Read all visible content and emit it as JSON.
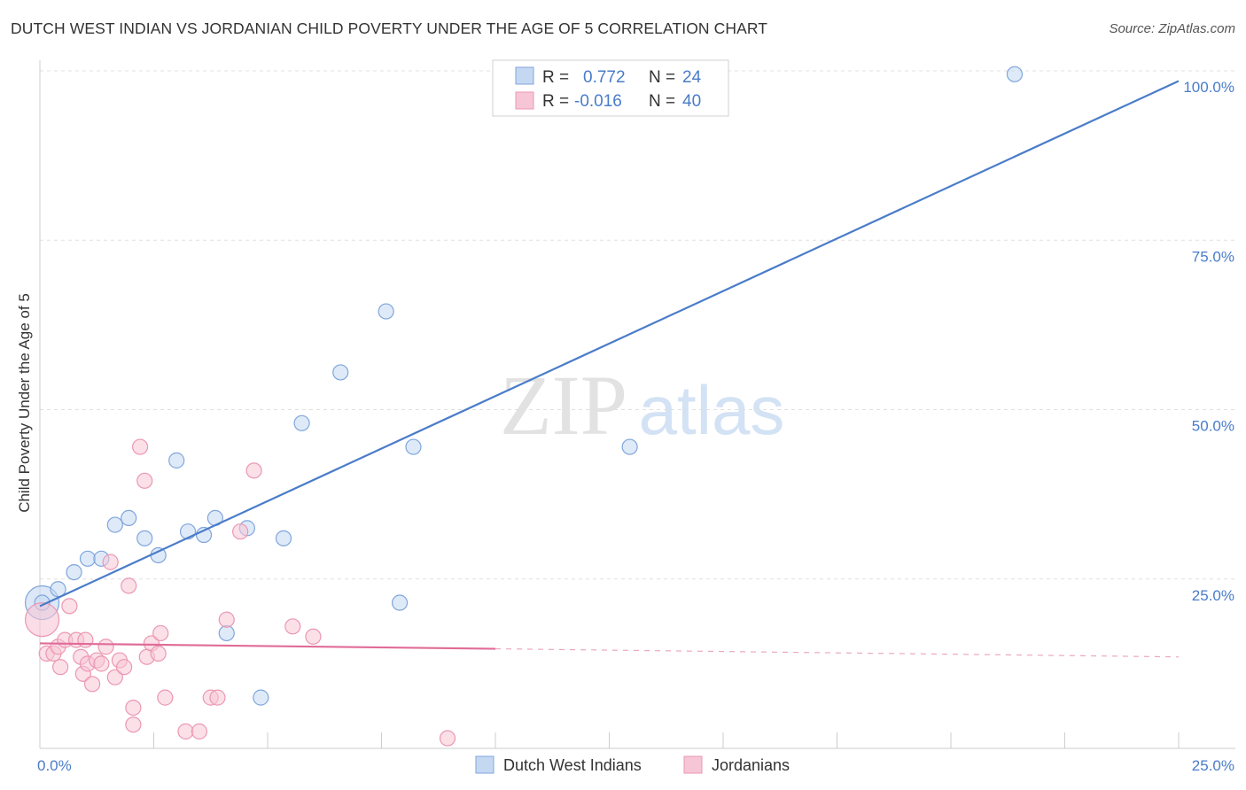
{
  "chart_data": {
    "type": "scatter",
    "title": "DUTCH WEST INDIAN VS JORDANIAN CHILD POVERTY UNDER THE AGE OF 5 CORRELATION CHART",
    "source": "Source: ZipAtlas.com",
    "ylabel": "Child Poverty Under the Age of 5",
    "xlabel": "",
    "xlim": [
      0,
      25
    ],
    "ylim": [
      0,
      100
    ],
    "x_tick_labels": {
      "min": "0.0%",
      "max": "25.0%"
    },
    "y_ticks": [
      {
        "value": 25,
        "label": "25.0%"
      },
      {
        "value": 50,
        "label": "50.0%"
      },
      {
        "value": 75,
        "label": "75.0%"
      },
      {
        "value": 100,
        "label": "100.0%"
      }
    ],
    "watermark": {
      "zip": "ZIP",
      "atlas": "atlas"
    },
    "legend": {
      "rows": [
        {
          "r_label": "R =",
          "r_value": "0.772",
          "n_label": "N =",
          "n_value": "24"
        },
        {
          "r_label": "R =",
          "r_value": "-0.016",
          "n_label": "N =",
          "n_value": "40"
        }
      ]
    },
    "series": [
      {
        "name": "Dutch West Indians",
        "color": "#4a7cc9",
        "fill": "#c5d8f2",
        "stroke": "#7fa6dc",
        "trend": {
          "x0": 0,
          "y0": 21,
          "x1": 25,
          "y1": 98.5,
          "solid_until": 25
        },
        "points": [
          [
            0.05,
            21.5
          ],
          [
            0.4,
            23.5
          ],
          [
            0.75,
            26
          ],
          [
            1.05,
            28
          ],
          [
            1.35,
            28
          ],
          [
            1.65,
            33
          ],
          [
            1.95,
            34
          ],
          [
            2.3,
            31
          ],
          [
            2.6,
            28.5
          ],
          [
            3.0,
            42.5
          ],
          [
            3.25,
            32
          ],
          [
            3.6,
            31.5
          ],
          [
            3.85,
            34
          ],
          [
            4.1,
            17
          ],
          [
            4.55,
            32.5
          ],
          [
            4.85,
            7.5
          ],
          [
            5.35,
            31
          ],
          [
            5.75,
            48
          ],
          [
            6.6,
            55.5
          ],
          [
            7.6,
            64.5
          ],
          [
            7.9,
            21.5
          ],
          [
            8.2,
            44.5
          ],
          [
            12.95,
            44.5
          ],
          [
            21.4,
            99.5
          ]
        ],
        "large_points": [
          [
            0.05,
            21.5
          ]
        ]
      },
      {
        "name": "Jordanians",
        "color": "#e06c97",
        "fill": "#f7c6d6",
        "stroke": "#eb97b4",
        "trend": {
          "x0": 0,
          "y0": 15.5,
          "x1": 25,
          "y1": 13.5,
          "solid_until": 10
        },
        "points": [
          [
            0.15,
            14
          ],
          [
            0.3,
            14
          ],
          [
            0.4,
            15
          ],
          [
            0.45,
            12
          ],
          [
            0.55,
            16
          ],
          [
            0.65,
            21
          ],
          [
            0.8,
            16
          ],
          [
            0.9,
            13.5
          ],
          [
            0.95,
            11
          ],
          [
            1.0,
            16
          ],
          [
            1.05,
            12.5
          ],
          [
            1.15,
            9.5
          ],
          [
            1.25,
            13
          ],
          [
            1.35,
            12.5
          ],
          [
            1.45,
            15
          ],
          [
            1.55,
            27.5
          ],
          [
            1.65,
            10.5
          ],
          [
            1.75,
            13
          ],
          [
            1.85,
            12
          ],
          [
            1.95,
            24
          ],
          [
            2.05,
            6
          ],
          [
            2.05,
            3.5
          ],
          [
            2.2,
            44.5
          ],
          [
            2.3,
            39.5
          ],
          [
            2.35,
            13.5
          ],
          [
            2.45,
            15.5
          ],
          [
            2.6,
            14
          ],
          [
            2.65,
            17
          ],
          [
            2.75,
            7.5
          ],
          [
            3.2,
            2.5
          ],
          [
            3.5,
            2.5
          ],
          [
            3.75,
            7.5
          ],
          [
            3.9,
            7.5
          ],
          [
            4.1,
            19
          ],
          [
            4.4,
            32
          ],
          [
            4.7,
            41
          ],
          [
            5.55,
            18
          ],
          [
            6.0,
            16.5
          ],
          [
            8.95,
            1.5
          ]
        ],
        "large_points": [
          [
            0.05,
            19
          ]
        ]
      }
    ]
  }
}
